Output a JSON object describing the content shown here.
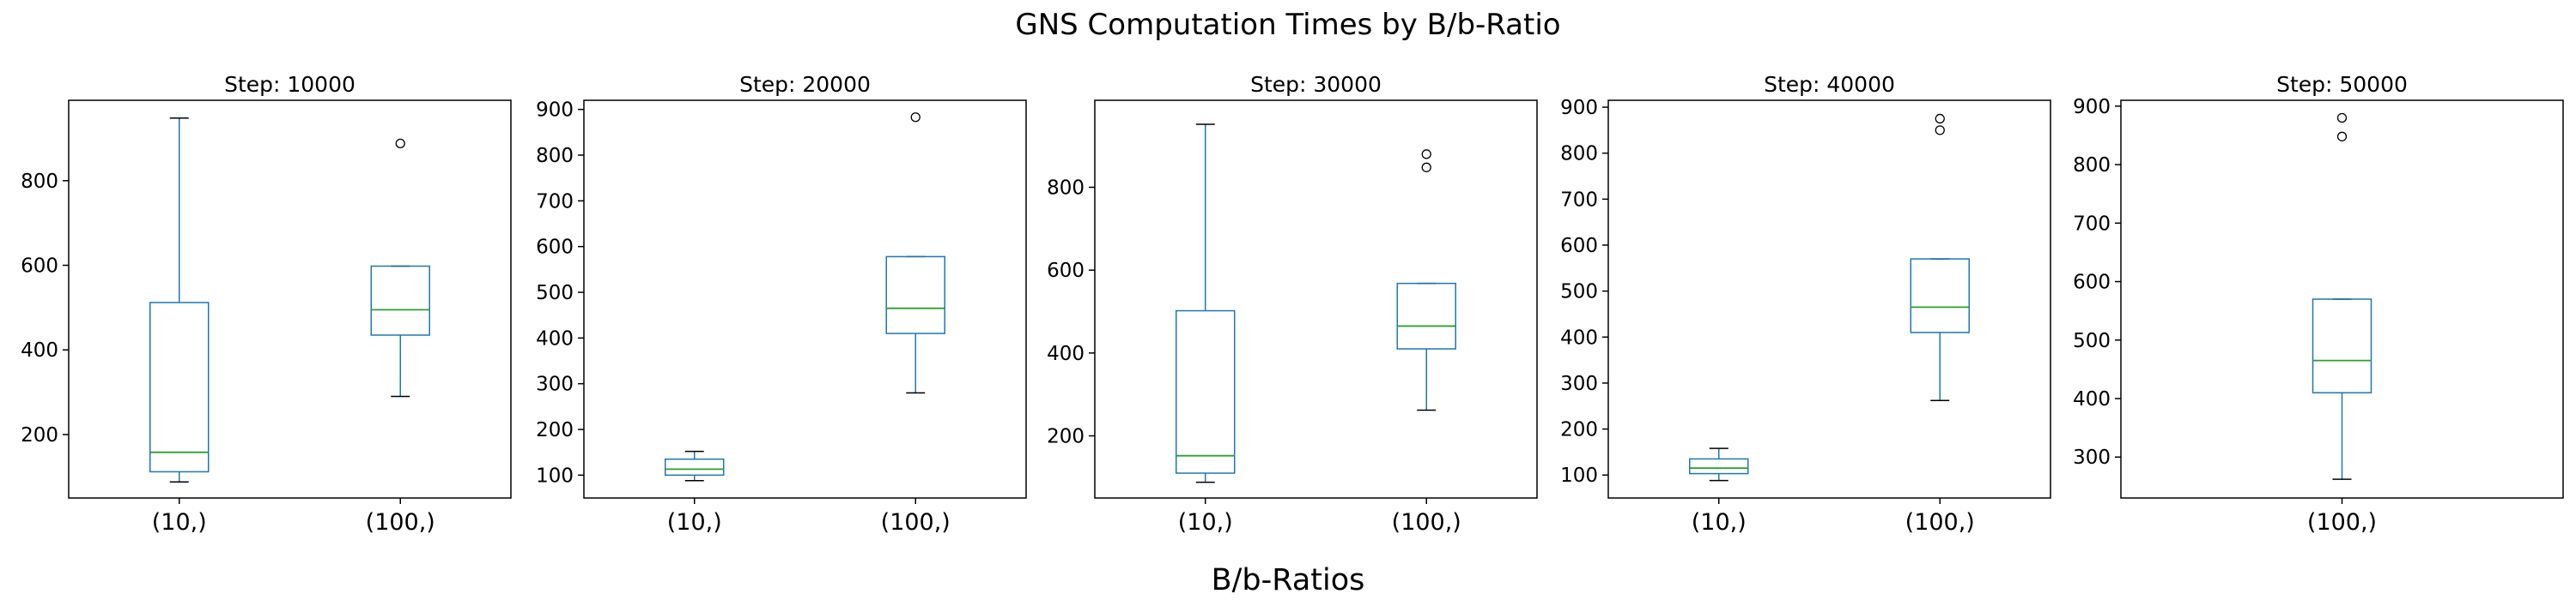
{
  "figure": {
    "title": "GNS Computation Times by B/b-Ratio",
    "xlabel": "B/b-Ratios"
  },
  "colors": {
    "box": "#1f77b4",
    "median": "#2ca02c",
    "whisker": "#1f77b4",
    "cap": "#000000",
    "flier": "#000000",
    "frame": "#000000"
  },
  "chart_data": [
    {
      "type": "box",
      "title": "Step: 10000",
      "categories": [
        "(10,)",
        "(100,)"
      ],
      "ylim": [
        50,
        990
      ],
      "yticks": [
        200,
        400,
        600,
        800
      ],
      "boxes": [
        {
          "category": "(10,)",
          "whislo": 88,
          "q1": 112,
          "med": 158,
          "q3": 512,
          "whishi": 948,
          "fliers": []
        },
        {
          "category": "(100,)",
          "whislo": 290,
          "q1": 435,
          "med": 495,
          "q3": 598,
          "whishi": 598,
          "fliers": [
            888
          ]
        }
      ]
    },
    {
      "type": "box",
      "title": "Step: 20000",
      "categories": [
        "(10,)",
        "(100,)"
      ],
      "ylim": [
        50,
        920
      ],
      "yticks": [
        100,
        200,
        300,
        400,
        500,
        600,
        700,
        800,
        900
      ],
      "boxes": [
        {
          "category": "(10,)",
          "whislo": 88,
          "q1": 100,
          "med": 113,
          "q3": 135,
          "whishi": 152,
          "fliers": []
        },
        {
          "category": "(100,)",
          "whislo": 280,
          "q1": 410,
          "med": 465,
          "q3": 578,
          "whishi": 578,
          "fliers": [
            883
          ]
        }
      ]
    },
    {
      "type": "box",
      "title": "Step: 30000",
      "categories": [
        "(10,)",
        "(100,)"
      ],
      "ylim": [
        50,
        1010
      ],
      "yticks": [
        200,
        400,
        600,
        800
      ],
      "boxes": [
        {
          "category": "(10,)",
          "whislo": 88,
          "q1": 110,
          "med": 152,
          "q3": 502,
          "whishi": 952,
          "fliers": []
        },
        {
          "category": "(100,)",
          "whislo": 262,
          "q1": 410,
          "med": 465,
          "q3": 568,
          "whishi": 568,
          "fliers": [
            848,
            880
          ]
        }
      ]
    },
    {
      "type": "box",
      "title": "Step: 40000",
      "categories": [
        "(10,)",
        "(100,)"
      ],
      "ylim": [
        50,
        915
      ],
      "yticks": [
        100,
        200,
        300,
        400,
        500,
        600,
        700,
        800,
        900
      ],
      "boxes": [
        {
          "category": "(10,)",
          "whislo": 88,
          "q1": 103,
          "med": 115,
          "q3": 135,
          "whishi": 158,
          "fliers": []
        },
        {
          "category": "(100,)",
          "whislo": 262,
          "q1": 410,
          "med": 465,
          "q3": 570,
          "whishi": 570,
          "fliers": [
            850,
            875
          ]
        }
      ]
    },
    {
      "type": "box",
      "title": "Step: 50000",
      "categories": [
        "(100,)"
      ],
      "ylim": [
        230,
        910
      ],
      "yticks": [
        300,
        400,
        500,
        600,
        700,
        800,
        900
      ],
      "boxes": [
        {
          "category": "(100,)",
          "whislo": 262,
          "q1": 410,
          "med": 465,
          "q3": 570,
          "whishi": 570,
          "fliers": [
            848,
            880
          ]
        }
      ]
    }
  ]
}
